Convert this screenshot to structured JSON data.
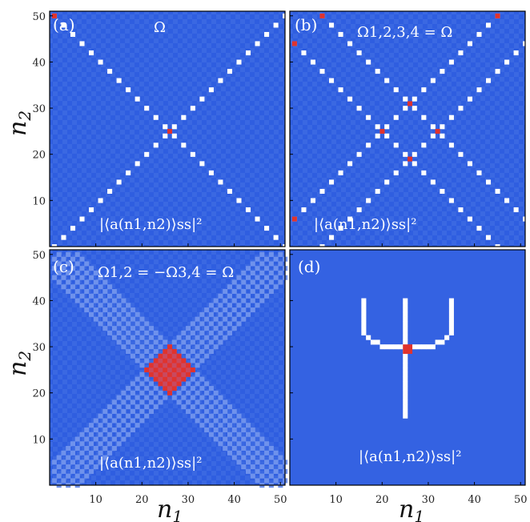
{
  "colors": {
    "background_dark": "#2f5ee0",
    "background_mid": "#3a68e2",
    "background_light": "#5a84ea",
    "pale": "#9bb3f2",
    "white": "#ffffff",
    "red": "#e0332e"
  },
  "axes": {
    "xlabel": "n",
    "xlabel_sub": "1",
    "ylabel": "n",
    "ylabel_sub": "2",
    "xticks": [
      "10",
      "20",
      "30",
      "40",
      "50"
    ],
    "yticks": [
      "10",
      "20",
      "30",
      "40",
      "50"
    ]
  },
  "chart_data": [
    {
      "type": "heatmap",
      "panel": "(a)",
      "annotation": "Ω",
      "quantity": "|⟨a(n1,n2)⟩ss|²",
      "grid_size": [
        51,
        51
      ],
      "xlim": [
        0,
        51
      ],
      "ylim": [
        0,
        51
      ],
      "pattern": "X-shaped diagonals from corners (n1 = n2 and n1 + n2 = 51) in white on blue background",
      "red_cells": [
        [
          26,
          25
        ],
        [
          1,
          50
        ]
      ]
    },
    {
      "type": "heatmap",
      "panel": "(b)",
      "annotation": "Ω1,2,3,4 = Ω",
      "quantity": "|⟨a(n1,n2)⟩ss|²",
      "grid_size": [
        51,
        51
      ],
      "xlim": [
        0,
        51
      ],
      "ylim": [
        0,
        51
      ],
      "pattern": "two parallel X bands (four white diagonal lines) forming a diamond in the center",
      "red_cells": [
        [
          26,
          31
        ],
        [
          20,
          25
        ],
        [
          32,
          25
        ],
        [
          26,
          19
        ],
        [
          7,
          50
        ],
        [
          45,
          50
        ],
        [
          1,
          44
        ],
        [
          1,
          6
        ]
      ]
    },
    {
      "type": "heatmap",
      "panel": "(c)",
      "annotation": "Ω1,2 = −Ω3,4 = Ω",
      "quantity": "|⟨a(n1,n2)⟩ss|²",
      "grid_size": [
        51,
        51
      ],
      "xlim": [
        0,
        51
      ],
      "ylim": [
        0,
        51
      ],
      "pattern": "faded checkerboard X bands with a red checkerboard diamond centered at (26, 25)",
      "red_cells_center": [
        26,
        25
      ],
      "red_diamond_radius": 5
    },
    {
      "type": "heatmap",
      "panel": "(d)",
      "annotation": "",
      "quantity": "|⟨a(n1,n2)⟩ss|²",
      "grid_size": [
        51,
        51
      ],
      "xlim": [
        0,
        51
      ],
      "ylim": [
        0,
        51
      ],
      "pattern": "white Ψ-shaped pattern on blue background",
      "red_cells": [
        [
          26,
          29
        ],
        [
          25,
          29
        ],
        [
          26,
          30
        ],
        [
          25,
          30
        ]
      ]
    }
  ]
}
